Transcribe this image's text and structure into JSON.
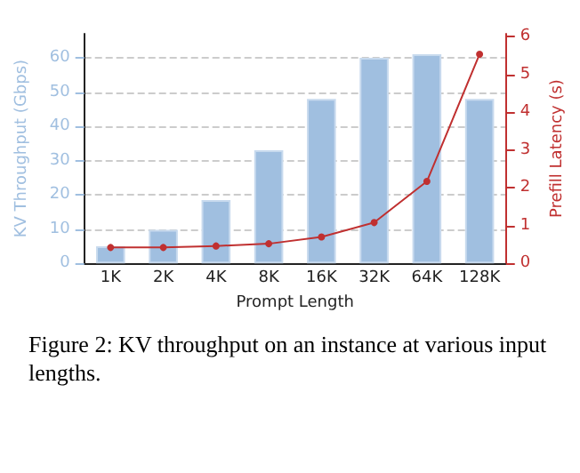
{
  "chart_data": {
    "type": "bar",
    "xlabel": "Prompt Length",
    "ylabel": "KV Throughput (Gbps)",
    "y2label": "Prefill Latency (s)",
    "categories": [
      "1K",
      "2K",
      "4K",
      "8K",
      "16K",
      "32K",
      "64K",
      "128K"
    ],
    "series": [
      {
        "color": "#a0bfe0",
        "values": [
          5,
          9.8,
          18.5,
          33,
          48,
          60,
          61,
          48
        ]
      },
      {
        "type": "line",
        "axis": "y2",
        "color": "#c03030",
        "values": [
          0.42,
          0.42,
          0.46,
          0.52,
          0.7,
          1.08,
          2.17,
          5.54
        ]
      }
    ],
    "ylim": [
      0,
      67
    ],
    "yticks": [
      0,
      10,
      20,
      30,
      40,
      50,
      60
    ],
    "y2lim": [
      0,
      6.08
    ],
    "y2ticks": [
      0,
      1,
      2,
      3,
      4,
      5,
      6
    ],
    "grid": "y",
    "marker": "circle",
    "line_style": "solid",
    "annotations": [
      "Figure 2: KV throughput on an instance at various input lengths."
    ]
  }
}
